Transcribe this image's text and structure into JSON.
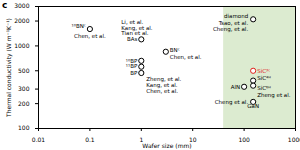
{
  "chart_data": {
    "type": "scatter",
    "title": "c",
    "x_label": "Wafer size (mm)",
    "y_label": "Thermal conductivity (W m⁻¹K⁻¹)",
    "log": true,
    "grid": false,
    "marker": "circle",
    "color": "#000000",
    "xlim": [
      0.01,
      1000
    ],
    "ylim": [
      100,
      3000
    ],
    "xticks": [
      0.01,
      0.1,
      1,
      10,
      100,
      1000
    ],
    "yticks": [
      100,
      200,
      300,
      500,
      1000,
      2000,
      3000
    ],
    "highlight": {
      "x": [
        40,
        1000
      ],
      "color": "#dcebd0"
    },
    "points": [
      {
        "label": "¹⁰BNᶜ",
        "x": 0.1,
        "y": 1600,
        "refs": [
          "Chen, et al."
        ]
      },
      {
        "label": "BAs",
        "x": 1,
        "y": 1200,
        "refs": [
          "Li, et al.",
          "Kang, et al.",
          "Tian et al."
        ]
      },
      {
        "label": "BNᶜ",
        "x": 3,
        "y": 850,
        "refs": [
          "Chen, et al."
        ]
      },
      {
        "label": "¹⁰BP",
        "x": 1,
        "y": 660,
        "refs": []
      },
      {
        "label": "¹¹BP",
        "x": 1,
        "y": 560,
        "refs": []
      },
      {
        "label": "BP",
        "x": 1,
        "y": 470,
        "refs": [
          "Zheng, et al.",
          "Kang, et al.",
          "Chen, et al."
        ]
      },
      {
        "label": "diamond",
        "x": 150,
        "y": 2100,
        "refs": [
          "Tsao, et al.",
          "Cheng, et al."
        ]
      },
      {
        "label": "SiC³ᶜ",
        "x": 150,
        "y": 500,
        "color": "#e0201b",
        "refs": []
      },
      {
        "label": "SiC⁴ᴴ",
        "x": 150,
        "y": 380,
        "refs": []
      },
      {
        "label": "SiC⁶ᴴ",
        "x": 150,
        "y": 330,
        "refs": [
          "Zheng et al."
        ]
      },
      {
        "label": "AlN",
        "x": 100,
        "y": 320,
        "refs": []
      },
      {
        "label": "GaN",
        "x": 150,
        "y": 210,
        "refs": [
          "Cheng et al."
        ]
      }
    ]
  }
}
